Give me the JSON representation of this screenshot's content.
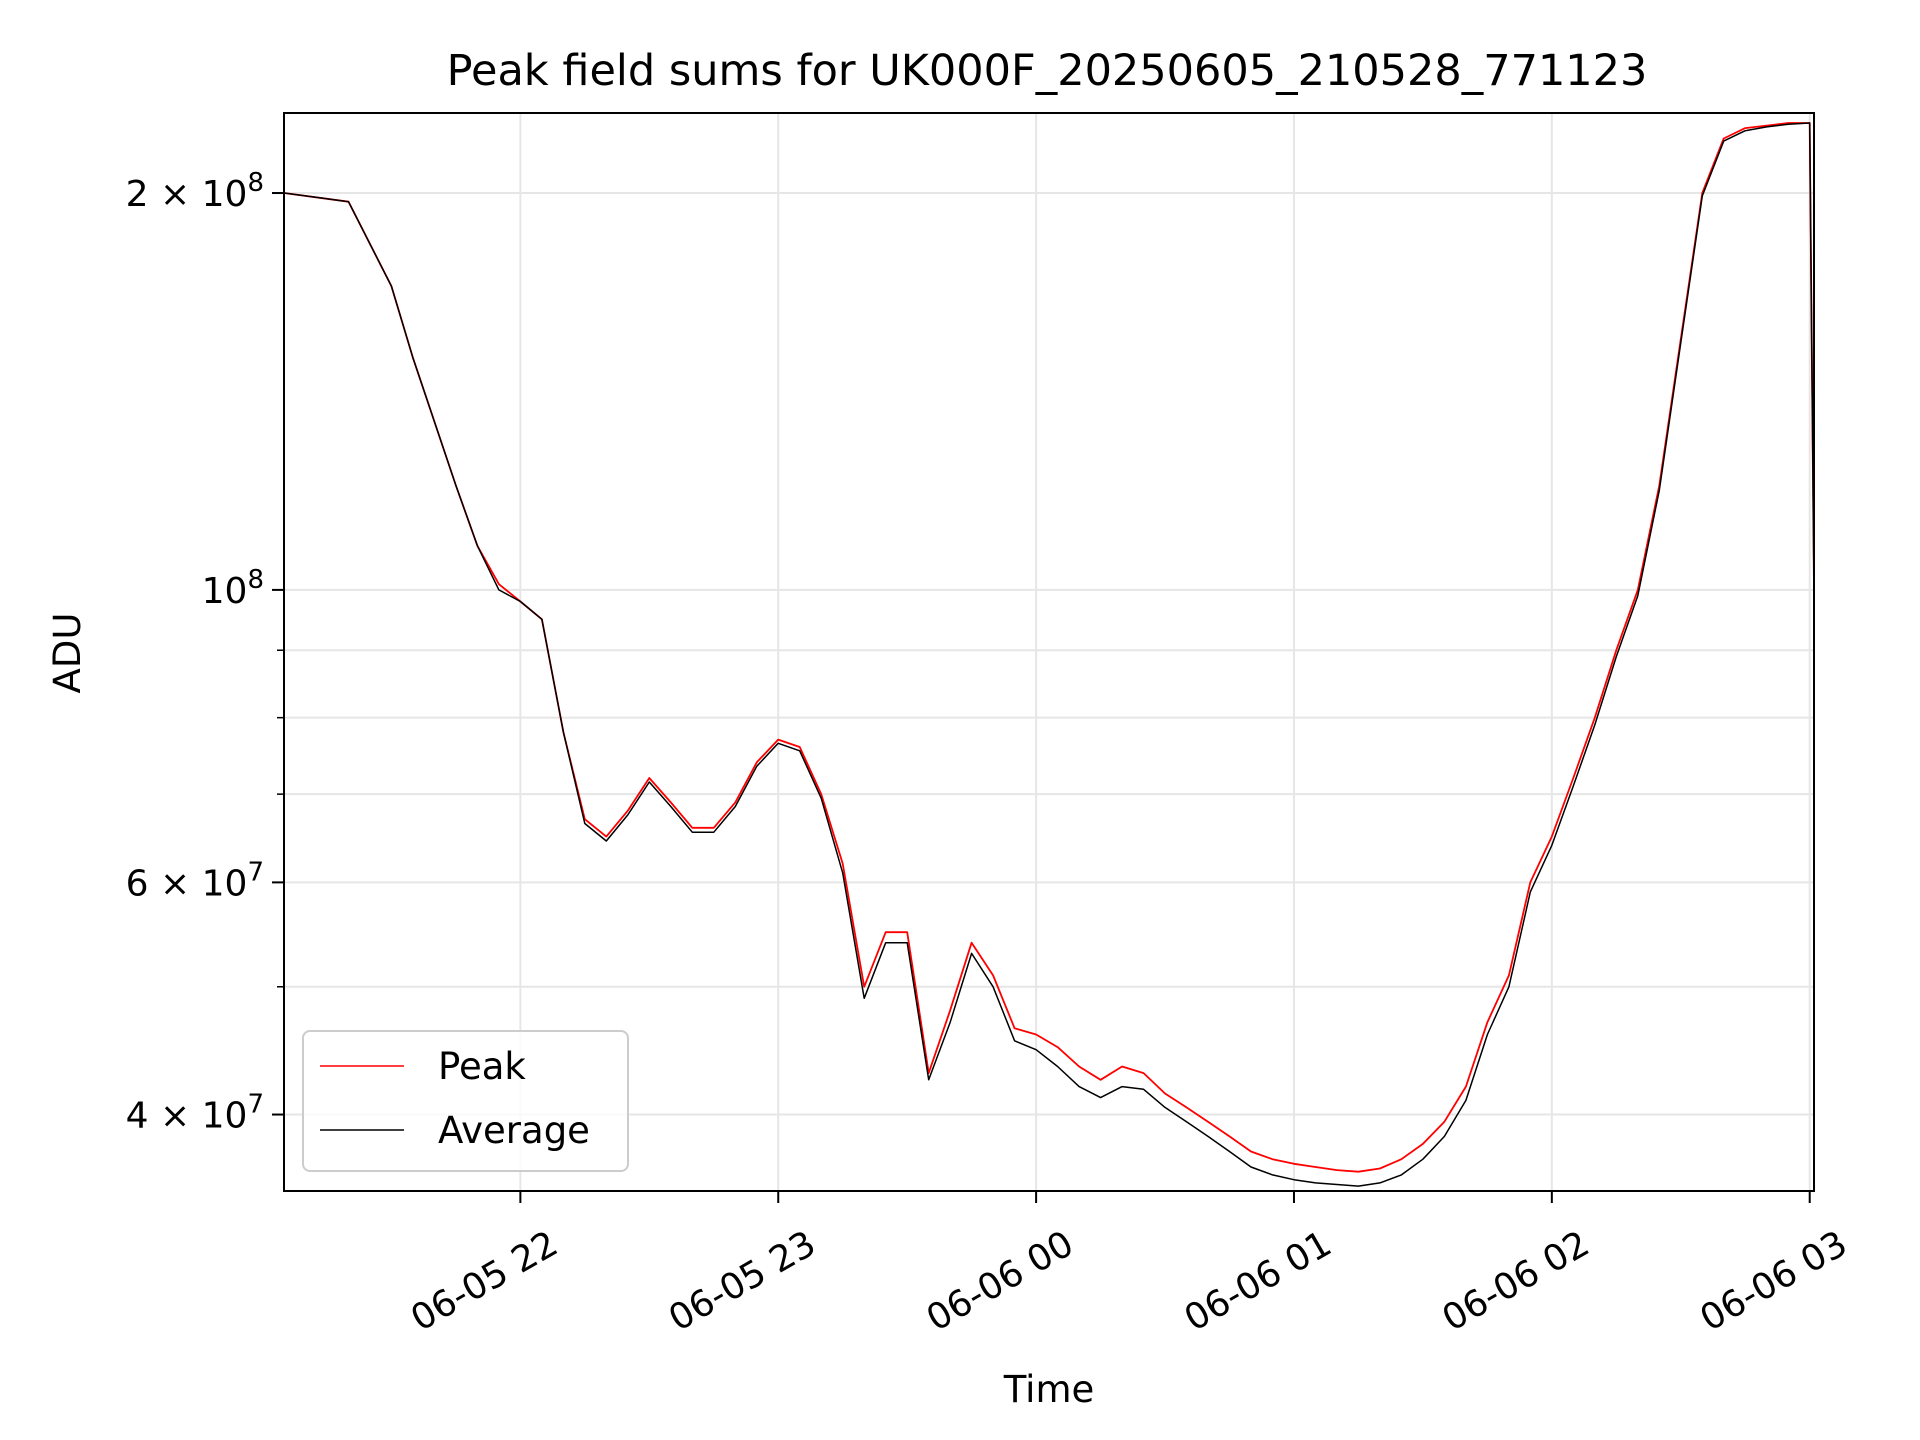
{
  "chart_data": {
    "type": "line",
    "title": "Peak field sums for UK000F_20250605_210528_771123",
    "xlabel": "Time",
    "ylabel": "ADU",
    "yscale": "log",
    "grid": true,
    "legend_position": "lower-left",
    "xlim": [
      "2025-06-05 21:05",
      "2025-06-06 03:01"
    ],
    "ylim": [
      35000000,
      230000000
    ],
    "x_ticks": [
      {
        "value": "2025-06-05 22:00",
        "label": "06-05 22"
      },
      {
        "value": "2025-06-05 23:00",
        "label": "06-05 23"
      },
      {
        "value": "2025-06-06 00:00",
        "label": "06-06 00"
      },
      {
        "value": "2025-06-06 01:00",
        "label": "06-06 01"
      },
      {
        "value": "2025-06-06 02:00",
        "label": "06-06 02"
      },
      {
        "value": "2025-06-06 03:00",
        "label": "06-06 03"
      }
    ],
    "y_ticks": [
      {
        "value": 200000000,
        "mantissa": "2",
        "exponent": "8"
      },
      {
        "value": 100000000,
        "mantissa": "",
        "exponent": "8"
      },
      {
        "value": 60000000,
        "mantissa": "6",
        "exponent": "7"
      },
      {
        "value": 40000000,
        "mantissa": "4",
        "exponent": "7"
      }
    ],
    "y_minor_ticks": [
      50000000,
      70000000,
      80000000,
      90000000
    ],
    "x": [
      "2025-06-05 21:05",
      "2025-06-05 21:15",
      "2025-06-05 21:20",
      "2025-06-05 21:30",
      "2025-06-05 21:35",
      "2025-06-05 21:45",
      "2025-06-05 21:50",
      "2025-06-05 21:55",
      "2025-06-05 22:00",
      "2025-06-05 22:05",
      "2025-06-05 22:10",
      "2025-06-05 22:15",
      "2025-06-05 22:20",
      "2025-06-05 22:25",
      "2025-06-05 22:30",
      "2025-06-05 22:35",
      "2025-06-05 22:40",
      "2025-06-05 22:45",
      "2025-06-05 22:50",
      "2025-06-05 22:55",
      "2025-06-05 23:00",
      "2025-06-05 23:05",
      "2025-06-05 23:10",
      "2025-06-05 23:15",
      "2025-06-05 23:20",
      "2025-06-05 23:25",
      "2025-06-05 23:30",
      "2025-06-05 23:35",
      "2025-06-05 23:40",
      "2025-06-05 23:45",
      "2025-06-05 23:50",
      "2025-06-05 23:55",
      "2025-06-06 00:00",
      "2025-06-06 00:05",
      "2025-06-06 00:10",
      "2025-06-06 00:15",
      "2025-06-06 00:20",
      "2025-06-06 00:25",
      "2025-06-06 00:30",
      "2025-06-06 00:35",
      "2025-06-06 00:40",
      "2025-06-06 00:45",
      "2025-06-06 00:50",
      "2025-06-06 00:55",
      "2025-06-06 01:00",
      "2025-06-06 01:05",
      "2025-06-06 01:10",
      "2025-06-06 01:15",
      "2025-06-06 01:20",
      "2025-06-06 01:25",
      "2025-06-06 01:30",
      "2025-06-06 01:35",
      "2025-06-06 01:40",
      "2025-06-06 01:45",
      "2025-06-06 01:50",
      "2025-06-06 01:55",
      "2025-06-06 02:00",
      "2025-06-06 02:05",
      "2025-06-06 02:10",
      "2025-06-06 02:15",
      "2025-06-06 02:20",
      "2025-06-06 02:25",
      "2025-06-06 02:30",
      "2025-06-06 02:35",
      "2025-06-06 02:40",
      "2025-06-06 02:45",
      "2025-06-06 02:50",
      "2025-06-06 02:55",
      "2025-06-06 03:00",
      "2025-06-06 03:01"
    ],
    "series": [
      {
        "name": "Peak",
        "color": "#ff0000",
        "values": [
          200000000,
          198000000,
          197000000,
          170000000,
          150000000,
          120000000,
          108000000,
          101000000,
          98000000,
          95000000,
          78000000,
          67000000,
          65000000,
          68000000,
          72000000,
          69000000,
          66000000,
          66000000,
          69000000,
          74000000,
          77000000,
          76000000,
          70000000,
          62000000,
          50000000,
          55000000,
          55000000,
          43000000,
          48000000,
          54000000,
          51000000,
          46500000,
          46000000,
          45000000,
          43500000,
          42500000,
          43500000,
          43000000,
          41500000,
          40500000,
          39500000,
          38500000,
          37500000,
          37000000,
          36700000,
          36500000,
          36300000,
          36200000,
          36400000,
          37000000,
          38000000,
          39500000,
          42000000,
          47000000,
          51000000,
          60000000,
          65000000,
          72000000,
          80000000,
          90000000,
          100000000,
          120000000,
          155000000,
          200000000,
          220000000,
          224000000,
          225000000,
          226000000,
          226000000,
          100000000
        ]
      },
      {
        "name": "Average",
        "color": "#000000",
        "values": [
          200000000,
          198000000,
          197000000,
          170000000,
          150000000,
          120000000,
          108000000,
          100000000,
          98000000,
          95000000,
          78000000,
          66500000,
          64500000,
          67500000,
          71500000,
          68500000,
          65500000,
          65500000,
          68500000,
          73500000,
          76500000,
          75500000,
          69500000,
          61000000,
          49000000,
          54000000,
          54000000,
          42500000,
          47000000,
          53000000,
          50000000,
          45500000,
          44800000,
          43500000,
          42000000,
          41200000,
          42000000,
          41800000,
          40500000,
          39500000,
          38500000,
          37500000,
          36500000,
          36000000,
          35700000,
          35500000,
          35400000,
          35300000,
          35500000,
          36000000,
          37000000,
          38500000,
          41000000,
          46000000,
          50000000,
          59000000,
          64000000,
          71000000,
          79000000,
          89000000,
          99000000,
          119000000,
          154000000,
          199000000,
          219000000,
          223000000,
          224500000,
          225500000,
          226000000,
          100000000
        ]
      }
    ]
  }
}
